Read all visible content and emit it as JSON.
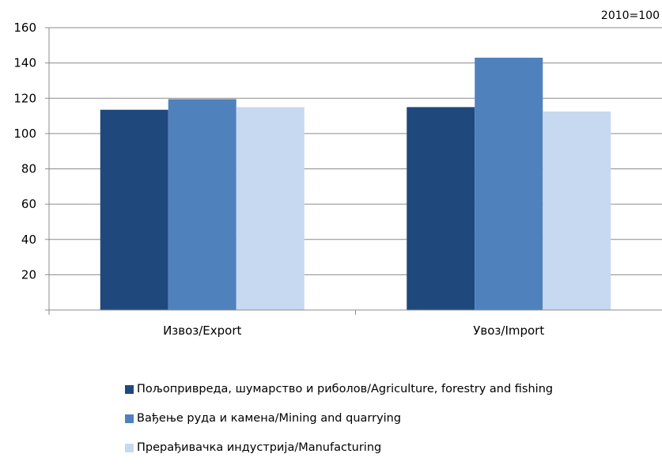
{
  "chart_data": {
    "type": "bar",
    "base_note": "2010=100",
    "categories": [
      "Извоз/Export",
      "Увоз/Import"
    ],
    "series": [
      {
        "name": "Пољопривреда, шумарство и риболов/Agriculture, forestry and fishing",
        "color": "#1f497d",
        "values": [
          113.5,
          115
        ]
      },
      {
        "name": "Вађење руда и камена/Mining and quarrying",
        "color": "#4f81bd",
        "values": [
          119.5,
          143
        ]
      },
      {
        "name": "Прерађивачка индустрија/Manufacturing",
        "color": "#c6d9f0",
        "values": [
          115,
          112.5
        ]
      }
    ],
    "ylim": [
      0,
      160
    ],
    "yticks": [
      20,
      40,
      60,
      80,
      100,
      120,
      140,
      160
    ],
    "grid": true,
    "legend_position": "bottom"
  }
}
